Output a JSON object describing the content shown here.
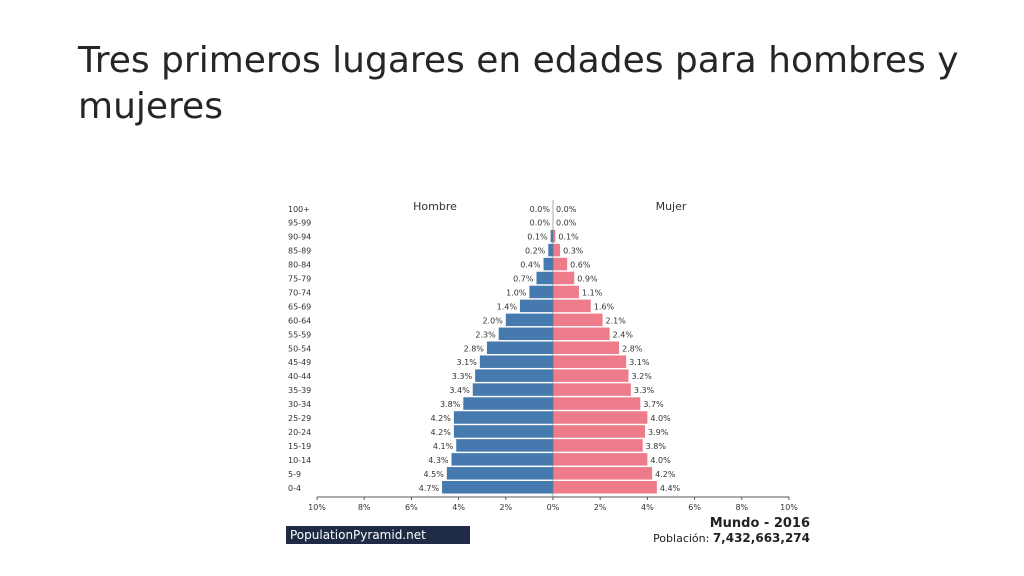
{
  "slide": {
    "title": "Tres primeros lugares en edades para hombres y mujeres"
  },
  "chart_data": {
    "type": "bar",
    "subtype": "population-pyramid",
    "categories": [
      "100+",
      "95-99",
      "90-94",
      "85-89",
      "80-84",
      "75-79",
      "70-74",
      "65-69",
      "60-64",
      "55-59",
      "50-54",
      "45-49",
      "40-44",
      "35-39",
      "30-34",
      "25-29",
      "20-24",
      "15-19",
      "10-14",
      "5-9",
      "0-4"
    ],
    "series": [
      {
        "name": "Hombre",
        "color": "#4679ad",
        "values": [
          0.0,
          0.0,
          0.1,
          0.2,
          0.4,
          0.7,
          1.0,
          1.4,
          2.0,
          2.3,
          2.8,
          3.1,
          3.3,
          3.4,
          3.8,
          4.2,
          4.2,
          4.1,
          4.3,
          4.5,
          4.7
        ],
        "labels": [
          "0.0%",
          "0.0%",
          "0.1%",
          "0.2%",
          "0.4%",
          "0.7%",
          "1.0%",
          "1.4%",
          "2.0%",
          "2.3%",
          "2.8%",
          "3.1%",
          "3.3%",
          "3.4%",
          "3.8%",
          "4.2%",
          "4.2%",
          "4.1%",
          "4.3%",
          "4.5%",
          "4.7%"
        ]
      },
      {
        "name": "Mujer",
        "color": "#ee7b8a",
        "values": [
          0.0,
          0.0,
          0.1,
          0.3,
          0.6,
          0.9,
          1.1,
          1.6,
          2.1,
          2.4,
          2.8,
          3.1,
          3.2,
          3.3,
          3.7,
          4.0,
          3.9,
          3.8,
          4.0,
          4.2,
          4.4
        ],
        "labels": [
          "0.0%",
          "0.0%",
          "0.1%",
          "0.3%",
          "0.6%",
          "0.9%",
          "1.1%",
          "1.6%",
          "2.1%",
          "2.4%",
          "2.8%",
          "3.1%",
          "3.2%",
          "3.3%",
          "3.7%",
          "4.0%",
          "3.9%",
          "3.8%",
          "4.0%",
          "4.2%",
          "4.4%"
        ]
      }
    ],
    "x_ticks": [
      "10%",
      "8%",
      "6%",
      "4%",
      "2%",
      "0%",
      "2%",
      "4%",
      "6%",
      "8%",
      "10%"
    ],
    "xlim": [
      -10,
      10
    ],
    "grid": false
  },
  "footer": {
    "brand": "PopulationPyramid.net",
    "region_title": "Mundo - 2016",
    "population_label": "Población:",
    "population_value": "7,432,663,274"
  }
}
